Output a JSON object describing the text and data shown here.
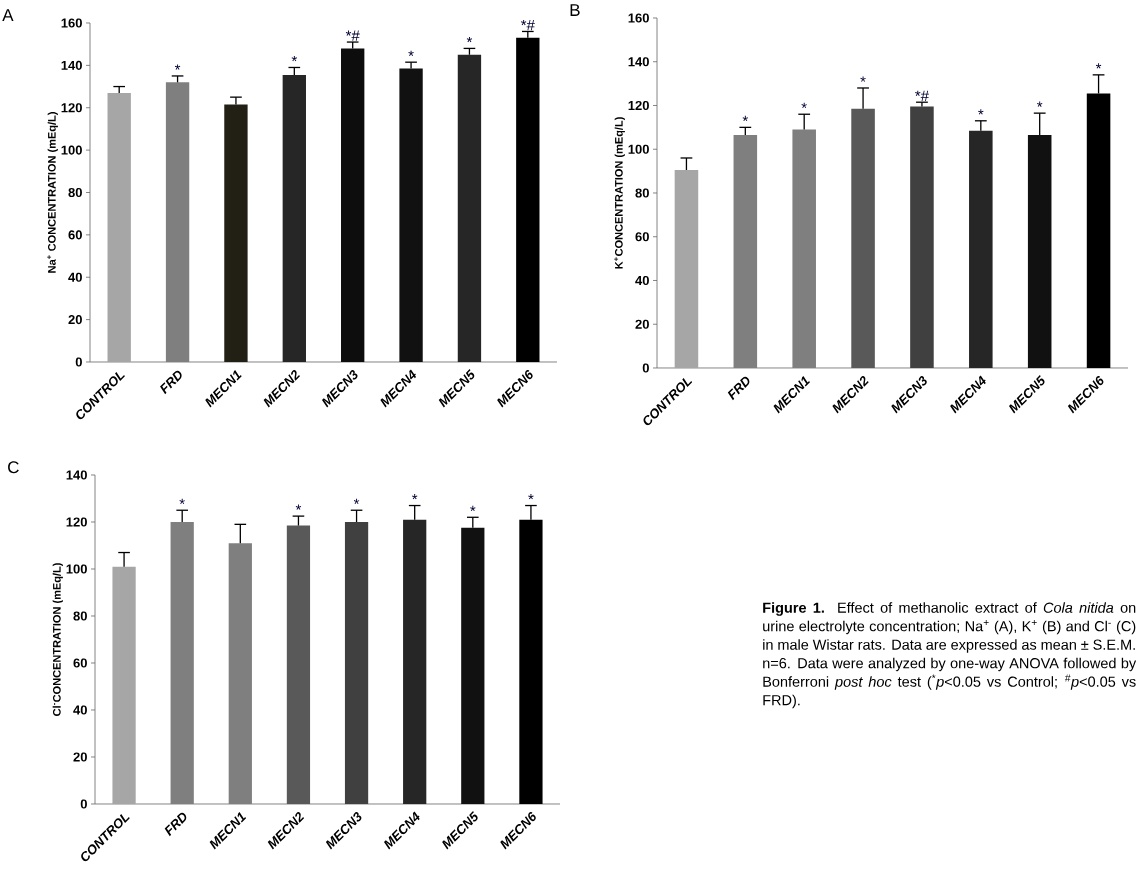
{
  "chart_data": [
    {
      "type": "bar",
      "title": "A",
      "ylabel": "Na$^{+}$ CONCENTRATION (mEq/L)",
      "categories": [
        "CONTROL",
        "FRD",
        "MECN1",
        "MECN2",
        "MECN3",
        "MECN4",
        "MECN5",
        "MECN6"
      ],
      "values": [
        127,
        132,
        121.5,
        135.5,
        148,
        138.5,
        145,
        153
      ],
      "errors": [
        [
          127,
          130
        ],
        [
          132,
          135
        ],
        [
          121.5,
          125
        ],
        [
          135.5,
          139
        ],
        [
          148,
          151
        ],
        [
          138.5,
          141.5
        ],
        [
          145,
          148
        ],
        [
          153,
          156
        ]
      ],
      "colors": [
        "#a6a6a6",
        "#7f7f7f",
        "#221f14",
        "#262626",
        "#0d0d0d",
        "#111111",
        "#262626",
        "#000000"
      ],
      "ylim": [
        0,
        160
      ],
      "yticks": [
        0,
        20,
        40,
        60,
        80,
        100,
        120,
        140,
        160
      ],
      "annotations": [
        {
          "text": "*",
          "x": "FRD",
          "y": 135
        },
        {
          "text": "*",
          "x": "MECN2",
          "y": 139
        },
        {
          "text": "*#",
          "x": "MECN3",
          "y": 151
        },
        {
          "text": "*",
          "x": "MECN4",
          "y": 141.5
        },
        {
          "text": "*",
          "x": "MECN5",
          "y": 148
        },
        {
          "text": "*#",
          "x": "MECN6",
          "y": 156
        }
      ]
    },
    {
      "type": "bar",
      "title": "B",
      "ylabel": "K$^{+}$CONCENTRATION (mEq/L)",
      "categories": [
        "CONTROL",
        "FRD",
        "MECN1",
        "MECN2",
        "MECN3",
        "MECN4",
        "MECN5",
        "MECN6"
      ],
      "values": [
        90.5,
        106.5,
        109,
        118.5,
        119.5,
        108.5,
        106.5,
        125.5
      ],
      "errors": [
        [
          90.5,
          96
        ],
        [
          106.5,
          110
        ],
        [
          109,
          116
        ],
        [
          118.5,
          128
        ],
        [
          119.5,
          121.5
        ],
        [
          108.5,
          113
        ],
        [
          106.5,
          116.5
        ],
        [
          125.5,
          134
        ]
      ],
      "colors": [
        "#a6a6a6",
        "#7f7f7f",
        "#7f7f7f",
        "#595959",
        "#404040",
        "#262626",
        "#111111",
        "#000000"
      ],
      "ylim": [
        0,
        160
      ],
      "yticks": [
        0,
        20,
        40,
        60,
        80,
        100,
        120,
        140,
        160
      ],
      "annotations": [
        {
          "text": "*",
          "x": "FRD",
          "y": 110
        },
        {
          "text": "*",
          "x": "MECN1",
          "y": 116
        },
        {
          "text": "*",
          "x": "MECN2",
          "y": 128
        },
        {
          "text": "*#",
          "x": "MECN3",
          "y": 121.5
        },
        {
          "text": "*",
          "x": "MECN4",
          "y": 113
        },
        {
          "text": "*",
          "x": "MECN5",
          "y": 116.5
        },
        {
          "text": "*",
          "x": "MECN6",
          "y": 134
        }
      ]
    },
    {
      "type": "bar",
      "title": "C",
      "ylabel": "Cl$^{-}$CONCENTRATION (mEq/L)",
      "categories": [
        "CONTROL",
        "FRD",
        "MECN1",
        "MECN2",
        "MECN3",
        "MECN4",
        "MECN5",
        "MECN6"
      ],
      "values": [
        101,
        120,
        111,
        118.5,
        120,
        121,
        117.5,
        121
      ],
      "errors": [
        [
          101,
          107
        ],
        [
          120,
          125
        ],
        [
          111,
          119
        ],
        [
          118.5,
          122.5
        ],
        [
          120,
          125
        ],
        [
          121,
          127
        ],
        [
          117.5,
          122
        ],
        [
          121,
          127
        ]
      ],
      "colors": [
        "#a6a6a6",
        "#7f7f7f",
        "#7f7f7f",
        "#595959",
        "#404040",
        "#262626",
        "#111111",
        "#000000"
      ],
      "ylim": [
        0,
        140
      ],
      "yticks": [
        0,
        20,
        40,
        60,
        80,
        100,
        120,
        140
      ],
      "annotations": [
        {
          "text": "*",
          "x": "FRD",
          "y": 125
        },
        {
          "text": "*",
          "x": "MECN2",
          "y": 122.5
        },
        {
          "text": "*",
          "x": "MECN3",
          "y": 125
        },
        {
          "text": "*",
          "x": "MECN4",
          "y": 127
        },
        {
          "text": "*",
          "x": "MECN5",
          "y": 122
        },
        {
          "text": "*",
          "x": "MECN6",
          "y": 127
        },
        "**Figure 1.** Effect of methanolic extract of *Cola nitida* on urine electrolyte concentration; Na$^{+}$ (A), K$^{+}$ (B) and Cl$^{-}$ (C) in male Wistar rats. Data are expressed as mean ± S.E.M. n=6. Data were analyzed by one-way ANOVA followed by Bonferroni *post hoc* test ($^{*}$*p*<0.05 vs Control; $^{#}$*p*<0.05 vs FRD)."
      ]
    }
  ]
}
